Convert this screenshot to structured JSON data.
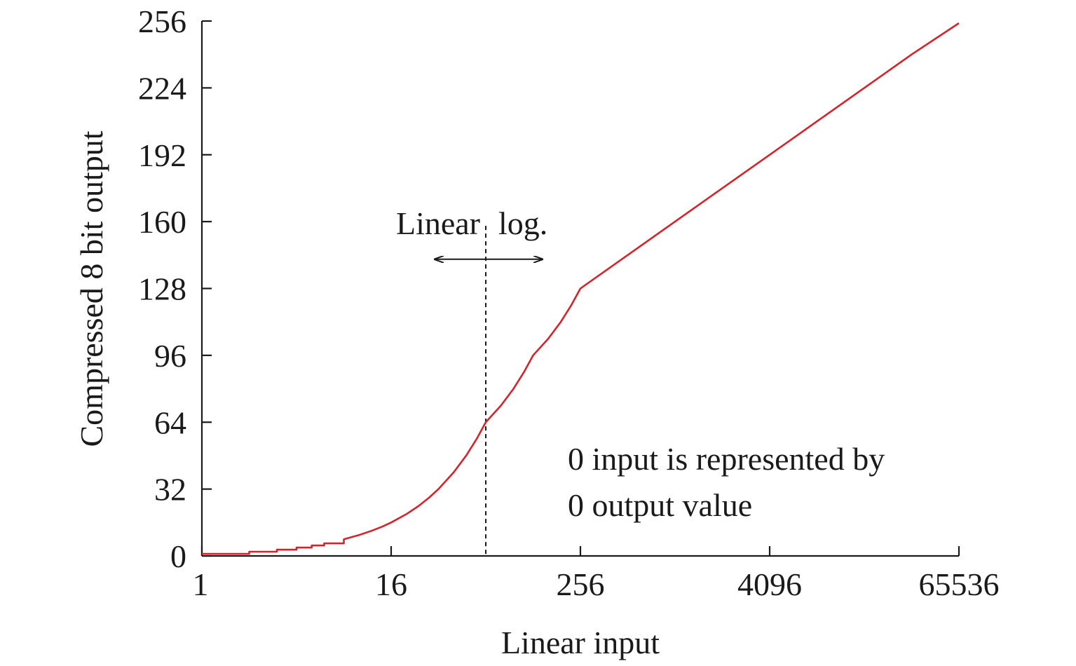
{
  "chart_data": {
    "type": "line",
    "xlabel": "Linear input",
    "ylabel": "Compressed 8 bit output",
    "x_scale": "log2",
    "xlim": [
      1,
      65536
    ],
    "ylim": [
      0,
      256
    ],
    "x_ticks": [
      {
        "value": 1,
        "label": "1"
      },
      {
        "value": 16,
        "label": "16"
      },
      {
        "value": 256,
        "label": "256"
      },
      {
        "value": 4096,
        "label": "4096"
      },
      {
        "value": 65536,
        "label": "65536"
      }
    ],
    "y_ticks": [
      {
        "value": 0,
        "label": "0"
      },
      {
        "value": 32,
        "label": "32"
      },
      {
        "value": 64,
        "label": "64"
      },
      {
        "value": 96,
        "label": "96"
      },
      {
        "value": 128,
        "label": "128"
      },
      {
        "value": 160,
        "label": "160"
      },
      {
        "value": 192,
        "label": "192"
      },
      {
        "value": 224,
        "label": "224"
      },
      {
        "value": 256,
        "label": "256"
      }
    ],
    "series": [
      {
        "color": "#d4232b",
        "x": [
          1,
          2,
          3,
          4,
          5,
          6,
          8,
          10,
          12,
          14,
          16,
          20,
          24,
          28,
          32,
          40,
          48,
          56,
          64,
          80,
          96,
          112,
          128,
          160,
          192,
          224,
          256,
          512,
          1024,
          2048,
          4096,
          8192,
          16384,
          32768,
          65536
        ],
        "y": [
          1,
          2,
          3,
          4,
          5,
          6,
          8,
          10,
          12,
          14,
          16,
          20,
          24,
          28,
          32,
          40,
          48,
          56,
          64,
          72,
          80,
          88,
          96,
          104,
          112,
          120,
          128,
          144,
          160,
          176,
          192,
          208,
          224,
          240,
          255
        ]
      }
    ],
    "divider": {
      "x": 64,
      "style": "dashed",
      "label_left": "Linear",
      "label_right": "log."
    },
    "note_lines": [
      "0 input is represented by",
      "0 output value"
    ],
    "grid": false
  }
}
